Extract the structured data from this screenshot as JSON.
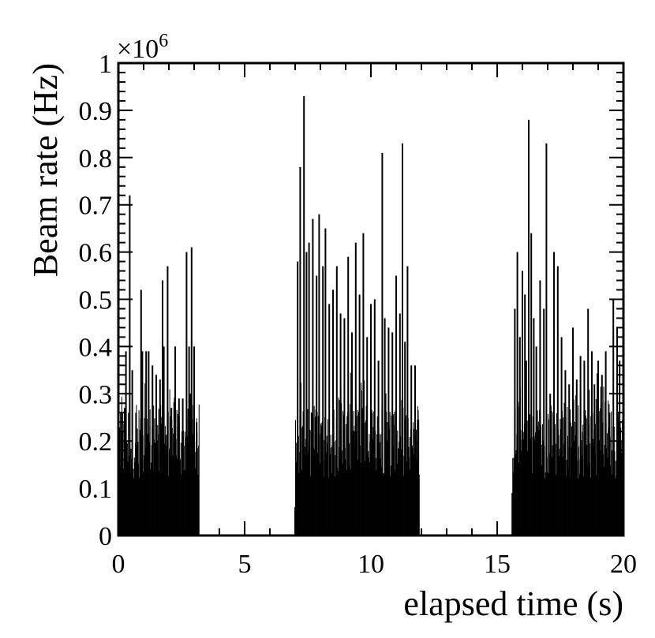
{
  "chart_data": {
    "type": "bar",
    "style": "histogram",
    "title": "",
    "xlabel": "elapsed time (s)",
    "ylabel": "Beam rate (Hz)",
    "y_multiplier_label": "×10",
    "y_multiplier_exponent": "6",
    "xlim": [
      0,
      20
    ],
    "ylim": [
      0,
      1
    ],
    "y_scale": 1000000,
    "x_ticks": [
      0,
      5,
      10,
      15,
      20
    ],
    "x_tick_labels": [
      "0",
      "5",
      "10",
      "15",
      "20"
    ],
    "y_ticks": [
      0,
      0.1,
      0.2,
      0.3,
      0.4,
      0.5,
      0.6,
      0.7,
      0.8,
      0.9,
      1
    ],
    "y_tick_labels": [
      "0",
      "0.1",
      "0.2",
      "0.3",
      "0.4",
      "0.5",
      "0.6",
      "0.7",
      "0.8",
      "0.9",
      "1"
    ],
    "grid": false,
    "legend": "none",
    "bar_color": "#000000",
    "spill_active_intervals_s": [
      [
        0.0,
        3.2
      ],
      [
        7.0,
        11.9
      ],
      [
        15.6,
        20.0
      ]
    ],
    "bin_width_s": 0.02,
    "peaks": [
      {
        "x": 0.1,
        "y": 0.26
      },
      {
        "x": 0.25,
        "y": 0.27
      },
      {
        "x": 0.3,
        "y": 0.39
      },
      {
        "x": 0.45,
        "y": 0.72
      },
      {
        "x": 0.55,
        "y": 0.35
      },
      {
        "x": 0.7,
        "y": 0.26
      },
      {
        "x": 0.9,
        "y": 0.52
      },
      {
        "x": 0.95,
        "y": 0.39
      },
      {
        "x": 1.1,
        "y": 0.39
      },
      {
        "x": 1.2,
        "y": 0.39
      },
      {
        "x": 1.35,
        "y": 0.36
      },
      {
        "x": 1.5,
        "y": 0.34
      },
      {
        "x": 1.65,
        "y": 0.33
      },
      {
        "x": 1.75,
        "y": 0.54
      },
      {
        "x": 1.8,
        "y": 0.4
      },
      {
        "x": 1.95,
        "y": 0.57
      },
      {
        "x": 2.1,
        "y": 0.27
      },
      {
        "x": 2.25,
        "y": 0.4
      },
      {
        "x": 2.4,
        "y": 0.29
      },
      {
        "x": 2.55,
        "y": 0.29
      },
      {
        "x": 2.7,
        "y": 0.6
      },
      {
        "x": 2.8,
        "y": 0.4
      },
      {
        "x": 2.85,
        "y": 0.3
      },
      {
        "x": 2.9,
        "y": 0.61
      },
      {
        "x": 3.0,
        "y": 0.4
      },
      {
        "x": 3.1,
        "y": 0.24
      },
      {
        "x": 7.0,
        "y": 0.06
      },
      {
        "x": 7.1,
        "y": 0.58
      },
      {
        "x": 7.2,
        "y": 0.78
      },
      {
        "x": 7.35,
        "y": 0.93
      },
      {
        "x": 7.45,
        "y": 0.6
      },
      {
        "x": 7.55,
        "y": 0.62
      },
      {
        "x": 7.7,
        "y": 0.67
      },
      {
        "x": 7.85,
        "y": 0.55
      },
      {
        "x": 7.95,
        "y": 0.68
      },
      {
        "x": 8.1,
        "y": 0.57
      },
      {
        "x": 8.2,
        "y": 0.65
      },
      {
        "x": 8.35,
        "y": 0.49
      },
      {
        "x": 8.5,
        "y": 0.52
      },
      {
        "x": 8.65,
        "y": 0.57
      },
      {
        "x": 8.8,
        "y": 0.47
      },
      {
        "x": 8.95,
        "y": 0.46
      },
      {
        "x": 9.1,
        "y": 0.59
      },
      {
        "x": 9.25,
        "y": 0.43
      },
      {
        "x": 9.4,
        "y": 0.62
      },
      {
        "x": 9.55,
        "y": 0.51
      },
      {
        "x": 9.7,
        "y": 0.64
      },
      {
        "x": 9.85,
        "y": 0.42
      },
      {
        "x": 10.0,
        "y": 0.49
      },
      {
        "x": 10.15,
        "y": 0.5
      },
      {
        "x": 10.3,
        "y": 0.37
      },
      {
        "x": 10.45,
        "y": 0.81
      },
      {
        "x": 10.55,
        "y": 0.46
      },
      {
        "x": 10.7,
        "y": 0.44
      },
      {
        "x": 10.85,
        "y": 0.43
      },
      {
        "x": 11.0,
        "y": 0.55
      },
      {
        "x": 11.15,
        "y": 0.47
      },
      {
        "x": 11.25,
        "y": 0.83
      },
      {
        "x": 11.35,
        "y": 0.41
      },
      {
        "x": 11.45,
        "y": 0.57
      },
      {
        "x": 11.6,
        "y": 0.36
      },
      {
        "x": 11.75,
        "y": 0.36
      },
      {
        "x": 11.85,
        "y": 0.2
      },
      {
        "x": 15.6,
        "y": 0.09
      },
      {
        "x": 15.7,
        "y": 0.48
      },
      {
        "x": 15.8,
        "y": 0.6
      },
      {
        "x": 15.9,
        "y": 0.42
      },
      {
        "x": 16.0,
        "y": 0.56
      },
      {
        "x": 16.1,
        "y": 0.51
      },
      {
        "x": 16.15,
        "y": 0.37
      },
      {
        "x": 16.25,
        "y": 0.88
      },
      {
        "x": 16.35,
        "y": 0.64
      },
      {
        "x": 16.45,
        "y": 0.46
      },
      {
        "x": 16.55,
        "y": 0.4
      },
      {
        "x": 16.7,
        "y": 0.54
      },
      {
        "x": 16.85,
        "y": 0.48
      },
      {
        "x": 16.95,
        "y": 0.83
      },
      {
        "x": 17.1,
        "y": 0.3
      },
      {
        "x": 17.25,
        "y": 0.6
      },
      {
        "x": 17.4,
        "y": 0.57
      },
      {
        "x": 17.55,
        "y": 0.42
      },
      {
        "x": 17.7,
        "y": 0.35
      },
      {
        "x": 17.85,
        "y": 0.32
      },
      {
        "x": 18.0,
        "y": 0.44
      },
      {
        "x": 18.15,
        "y": 0.33
      },
      {
        "x": 18.3,
        "y": 0.38
      },
      {
        "x": 18.45,
        "y": 0.37
      },
      {
        "x": 18.6,
        "y": 0.48
      },
      {
        "x": 18.75,
        "y": 0.39
      },
      {
        "x": 18.85,
        "y": 0.32
      },
      {
        "x": 19.0,
        "y": 0.37
      },
      {
        "x": 19.15,
        "y": 0.34
      },
      {
        "x": 19.3,
        "y": 0.39
      },
      {
        "x": 19.45,
        "y": 0.26
      },
      {
        "x": 19.6,
        "y": 0.5
      },
      {
        "x": 19.75,
        "y": 0.44
      },
      {
        "x": 19.85,
        "y": 0.37
      },
      {
        "x": 19.95,
        "y": 0.12
      }
    ]
  }
}
